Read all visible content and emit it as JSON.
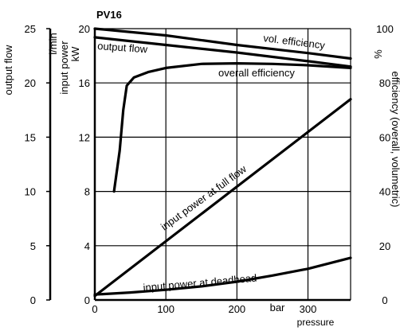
{
  "chart_data": {
    "type": "line",
    "title": "PV16",
    "xlabel": "pressure",
    "x_unit": "bar",
    "xlim": [
      0,
      360
    ],
    "x_ticks": [
      "0",
      "100",
      "200",
      "300"
    ],
    "x_grid": [
      0,
      100,
      200,
      300
    ],
    "grid": true,
    "axes": {
      "flow": {
        "label": "output flow",
        "unit": "l/min",
        "ylim": [
          0,
          25
        ],
        "ticks": [
          "25",
          "20",
          "15",
          "10",
          "5",
          "0"
        ]
      },
      "power": {
        "label": "input power",
        "unit": "kW",
        "ylim": [
          0,
          20
        ],
        "ticks": [
          "20",
          "16",
          "12",
          "8",
          "4",
          "0"
        ]
      },
      "efficiency": {
        "label": "efficiency (overall, volumetric)",
        "unit": "%",
        "ylim": [
          0,
          100
        ],
        "ticks": [
          "100",
          "80",
          "60",
          "40",
          "20",
          "0"
        ]
      }
    },
    "series": [
      {
        "name": "vol. efficiency",
        "axis": "efficiency",
        "x": [
          0,
          100,
          200,
          300,
          360
        ],
        "y": [
          100,
          97.5,
          94,
          91,
          89
        ]
      },
      {
        "name": "output flow",
        "axis": "flow",
        "x": [
          0,
          100,
          200,
          300,
          360
        ],
        "y": [
          24.2,
          23.5,
          22.8,
          22,
          21.5
        ]
      },
      {
        "name": "overall efficiency",
        "axis": "efficiency",
        "x": [
          27,
          35,
          40,
          45,
          55,
          75,
          100,
          150,
          200,
          250,
          300,
          360
        ],
        "y": [
          40,
          55,
          70,
          79,
          82,
          84,
          85.5,
          87,
          87.2,
          87,
          86.5,
          85.5
        ]
      },
      {
        "name": "input power at full flow",
        "axis": "power",
        "x": [
          0,
          360
        ],
        "y": [
          0.3,
          14.8
        ]
      },
      {
        "name": "input power at deadhead",
        "axis": "power",
        "x": [
          0,
          50,
          100,
          150,
          200,
          250,
          300,
          360
        ],
        "y": [
          0.4,
          0.55,
          0.75,
          1.0,
          1.35,
          1.8,
          2.3,
          3.1
        ]
      }
    ]
  }
}
